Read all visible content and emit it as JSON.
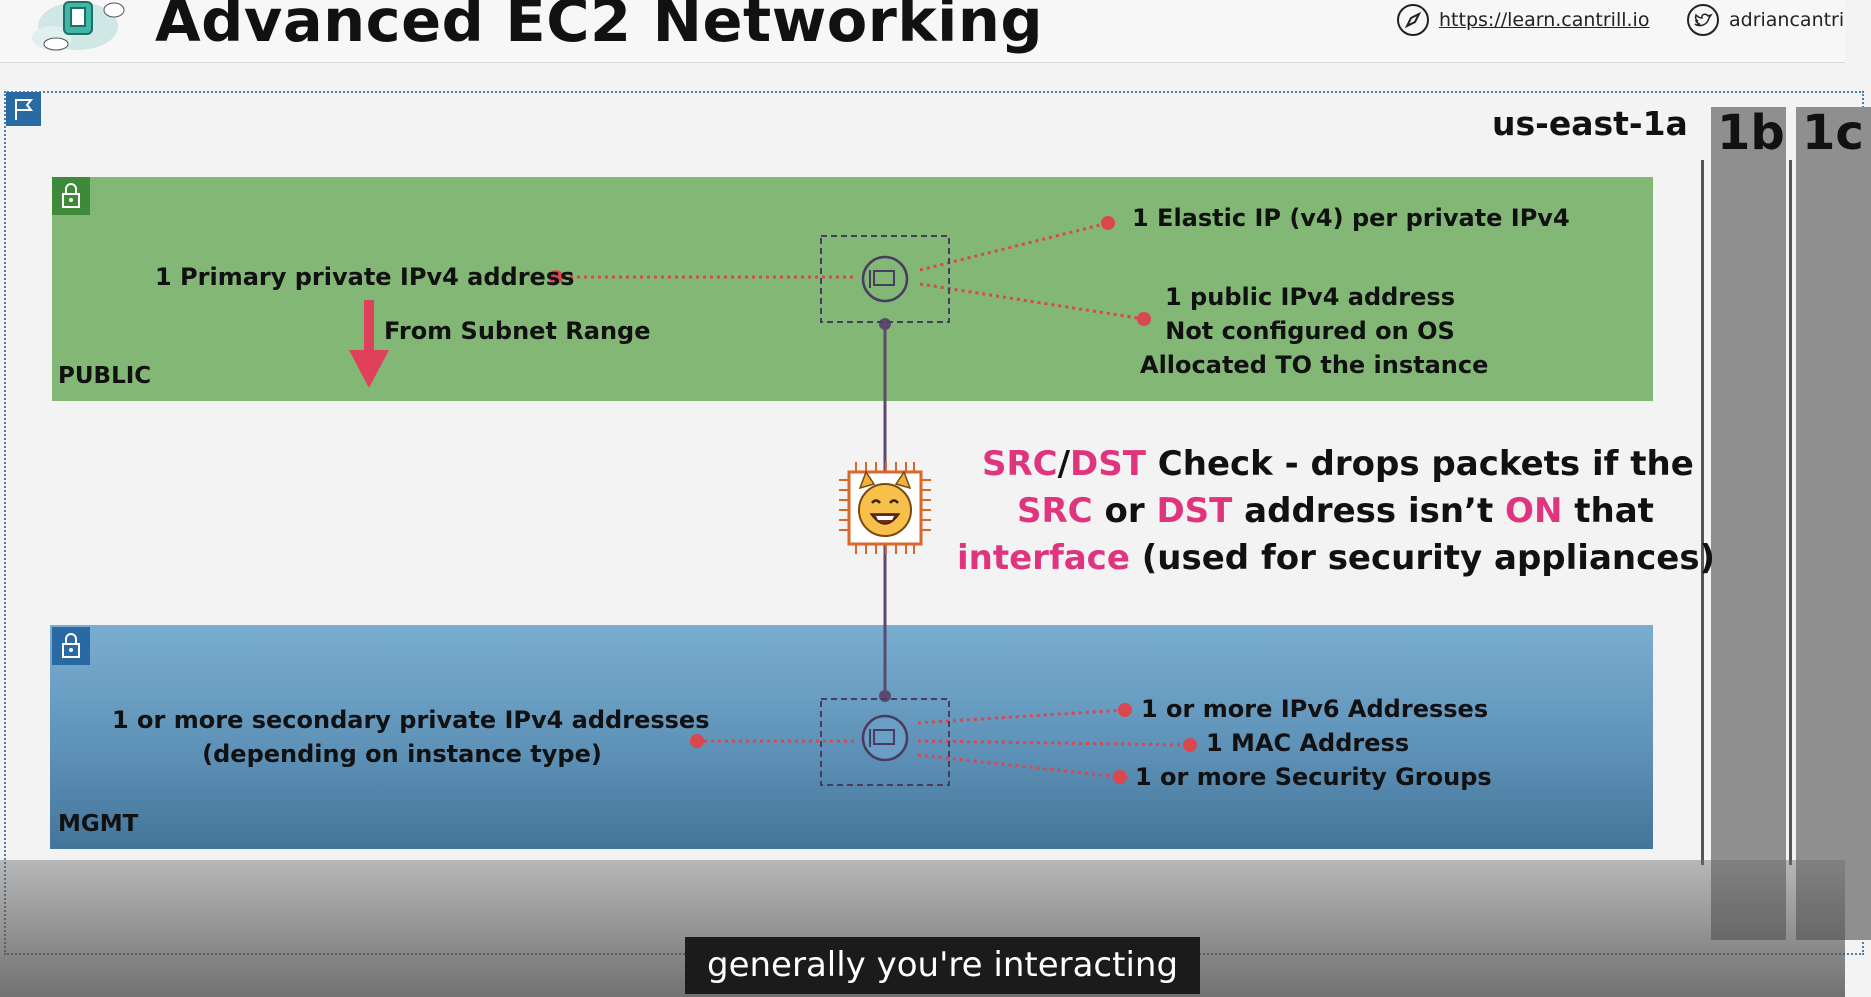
{
  "header": {
    "title": "Advanced EC2 Networking",
    "website": "https://learn.cantrill.io",
    "twitter": "adriancantri"
  },
  "diagram": {
    "region_zone": "us-east-1a",
    "other_zones": [
      "1b",
      "1c"
    ],
    "public_subnet": {
      "label": "PUBLIC",
      "primary_ip": "1 Primary private IPv4 address",
      "from_subnet": "From Subnet Range",
      "elastic_ip": "1 Elastic IP (v4) per private IPv4",
      "public_ip_lines": [
        "1 public IPv4 address",
        "Not configured on OS",
        "Allocated TO the instance"
      ]
    },
    "mgmt_subnet": {
      "label": "MGMT",
      "secondary_ips": [
        "1 or more secondary private IPv4 addresses",
        "(depending on instance type)"
      ],
      "ipv6": "1 or more IPv6 Addresses",
      "mac": "1 MAC Address",
      "security_groups": "1 or more Security Groups"
    },
    "src_dst": {
      "src": "SRC",
      "slash": "/",
      "dst": "DST",
      "line1_rest": " Check - drops packets if the",
      "or": " or ",
      "line2_mid": " address isn’t ",
      "on": "ON",
      "that": " that",
      "interface": "interface",
      "line3_rest": " (used for security appliances)"
    }
  },
  "caption": "generally you're interacting",
  "colors": {
    "public": "#82b776",
    "mgmt": "#5c8fb5",
    "accent_pink": "#e0347f",
    "connector_red": "#d9484f",
    "eni_purple": "#4a3c5e",
    "instance_orange": "#d9692b"
  },
  "icons": [
    "cloud-logo-icon",
    "compass-icon",
    "twitter-icon",
    "region-flag-icon",
    "lock-icon",
    "eni-icon",
    "instance-cat-chip-icon",
    "down-arrow-icon"
  ]
}
